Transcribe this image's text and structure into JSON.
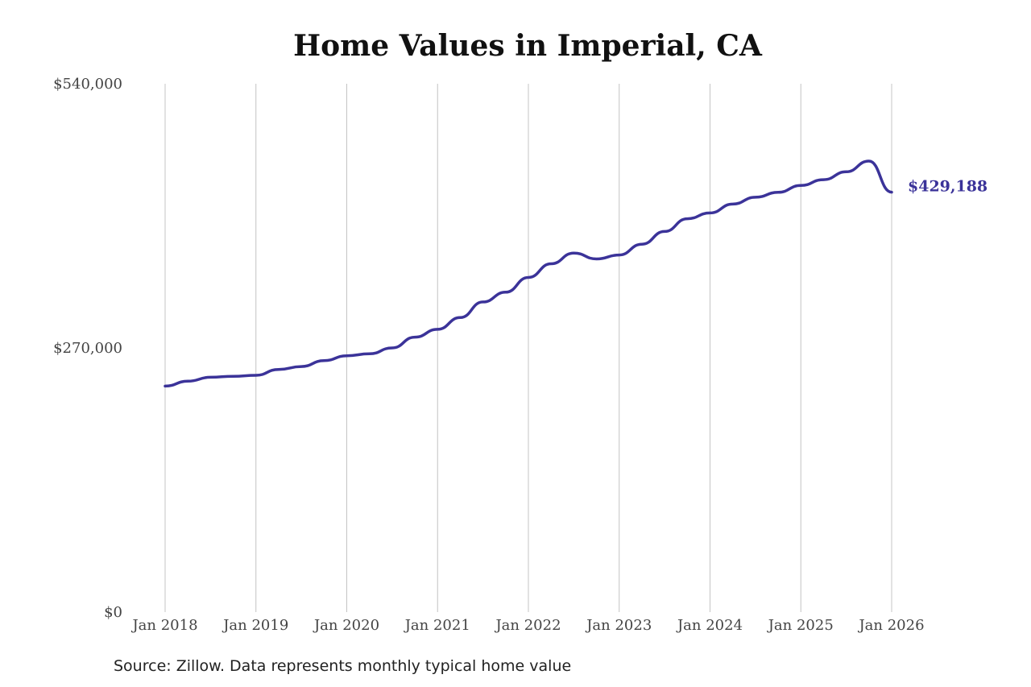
{
  "chart_data": {
    "type": "line",
    "title": "Home Values in Imperial, CA",
    "xlabel": "",
    "ylabel": "",
    "ylim": [
      0,
      540000
    ],
    "yticks": [
      {
        "value": 0,
        "label": "$0"
      },
      {
        "value": 270000,
        "label": "$270,000"
      },
      {
        "value": 540000,
        "label": "$540,000"
      }
    ],
    "xlim": [
      "2018-01",
      "2026-01"
    ],
    "xticks": [
      {
        "value": "2018-01",
        "label": "Jan 2018"
      },
      {
        "value": "2019-01",
        "label": "Jan 2019"
      },
      {
        "value": "2020-01",
        "label": "Jan 2020"
      },
      {
        "value": "2021-01",
        "label": "Jan 2021"
      },
      {
        "value": "2022-01",
        "label": "Jan 2022"
      },
      {
        "value": "2023-01",
        "label": "Jan 2023"
      },
      {
        "value": "2024-01",
        "label": "Jan 2024"
      },
      {
        "value": "2025-01",
        "label": "Jan 2025"
      },
      {
        "value": "2026-01",
        "label": "Jan 2026"
      }
    ],
    "grid": "vertical",
    "legend": "none",
    "series": [
      {
        "color": "#3b3399",
        "end_label": "$429,188",
        "points": [
          {
            "x": "2018-01",
            "y": 231000
          },
          {
            "x": "2018-04",
            "y": 236000
          },
          {
            "x": "2018-07",
            "y": 240000
          },
          {
            "x": "2018-10",
            "y": 241000
          },
          {
            "x": "2019-01",
            "y": 242000
          },
          {
            "x": "2019-04",
            "y": 248000
          },
          {
            "x": "2019-07",
            "y": 251000
          },
          {
            "x": "2019-10",
            "y": 257000
          },
          {
            "x": "2020-01",
            "y": 262000
          },
          {
            "x": "2020-04",
            "y": 264000
          },
          {
            "x": "2020-07",
            "y": 270000
          },
          {
            "x": "2020-10",
            "y": 281000
          },
          {
            "x": "2021-01",
            "y": 289000
          },
          {
            "x": "2021-04",
            "y": 301000
          },
          {
            "x": "2021-07",
            "y": 317000
          },
          {
            "x": "2021-10",
            "y": 327000
          },
          {
            "x": "2022-01",
            "y": 342000
          },
          {
            "x": "2022-04",
            "y": 356000
          },
          {
            "x": "2022-07",
            "y": 367000
          },
          {
            "x": "2022-10",
            "y": 361000
          },
          {
            "x": "2023-01",
            "y": 365000
          },
          {
            "x": "2023-04",
            "y": 376000
          },
          {
            "x": "2023-07",
            "y": 389000
          },
          {
            "x": "2023-10",
            "y": 402000
          },
          {
            "x": "2024-01",
            "y": 408000
          },
          {
            "x": "2024-04",
            "y": 417000
          },
          {
            "x": "2024-07",
            "y": 424000
          },
          {
            "x": "2024-10",
            "y": 429000
          },
          {
            "x": "2025-01",
            "y": 436000
          },
          {
            "x": "2025-04",
            "y": 442000
          },
          {
            "x": "2025-07",
            "y": 450000
          },
          {
            "x": "2025-10",
            "y": 461000
          },
          {
            "x": "2026-01",
            "y": 429188
          }
        ]
      }
    ],
    "source": "Source: Zillow. Data represents monthly typical home value"
  }
}
